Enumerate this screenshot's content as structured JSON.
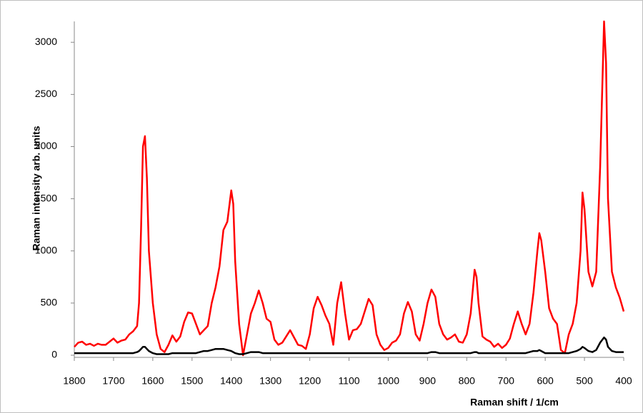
{
  "chart_data": {
    "type": "line",
    "xlabel": "Raman shift / 1/cm",
    "ylabel": "Raman intensity  arb. units",
    "x": [
      1800,
      1790,
      1780,
      1770,
      1760,
      1750,
      1740,
      1730,
      1720,
      1710,
      1700,
      1690,
      1680,
      1670,
      1660,
      1650,
      1640,
      1635,
      1630,
      1625,
      1620,
      1615,
      1610,
      1600,
      1590,
      1580,
      1570,
      1560,
      1550,
      1540,
      1530,
      1520,
      1510,
      1500,
      1490,
      1480,
      1470,
      1460,
      1450,
      1440,
      1430,
      1420,
      1410,
      1400,
      1395,
      1390,
      1380,
      1370,
      1360,
      1350,
      1340,
      1330,
      1320,
      1310,
      1300,
      1290,
      1280,
      1270,
      1260,
      1250,
      1240,
      1230,
      1220,
      1210,
      1200,
      1190,
      1180,
      1170,
      1160,
      1150,
      1140,
      1130,
      1120,
      1110,
      1100,
      1090,
      1080,
      1070,
      1060,
      1050,
      1040,
      1030,
      1020,
      1010,
      1000,
      990,
      980,
      970,
      960,
      950,
      940,
      930,
      920,
      910,
      900,
      890,
      880,
      870,
      860,
      850,
      840,
      830,
      820,
      810,
      800,
      790,
      780,
      775,
      770,
      760,
      750,
      740,
      730,
      720,
      710,
      700,
      690,
      680,
      670,
      660,
      650,
      640,
      630,
      620,
      615,
      610,
      600,
      590,
      580,
      570,
      560,
      550,
      540,
      530,
      520,
      510,
      505,
      500,
      490,
      480,
      470,
      460,
      450,
      445,
      440,
      430,
      420,
      410,
      400
    ],
    "series": [
      {
        "color": "#ff0000",
        "values": [
          80,
          120,
          130,
          100,
          110,
          90,
          110,
          100,
          100,
          130,
          160,
          120,
          140,
          150,
          200,
          230,
          280,
          500,
          1200,
          2000,
          2100,
          1700,
          1000,
          500,
          200,
          60,
          30,
          100,
          190,
          130,
          180,
          320,
          410,
          400,
          300,
          200,
          240,
          280,
          500,
          650,
          850,
          1200,
          1280,
          1580,
          1450,
          900,
          300,
          0,
          200,
          400,
          500,
          620,
          500,
          350,
          320,
          150,
          100,
          120,
          180,
          240,
          170,
          100,
          90,
          60,
          200,
          450,
          560,
          480,
          380,
          300,
          100,
          500,
          700,
          400,
          150,
          240,
          250,
          300,
          420,
          540,
          480,
          200,
          100,
          50,
          70,
          120,
          140,
          200,
          400,
          510,
          420,
          200,
          140,
          300,
          500,
          630,
          560,
          300,
          200,
          150,
          170,
          200,
          130,
          120,
          200,
          400,
          820,
          750,
          500,
          180,
          150,
          130,
          80,
          110,
          70,
          100,
          160,
          300,
          420,
          300,
          200,
          300,
          600,
          1000,
          1170,
          1100,
          800,
          450,
          350,
          300,
          50,
          20,
          200,
          300,
          500,
          1000,
          1560,
          1400,
          800,
          660,
          800,
          1800,
          3200,
          2800,
          1500,
          800,
          650,
          550,
          420
        ]
      },
      {
        "color": "#000000",
        "values": [
          20,
          20,
          20,
          20,
          20,
          20,
          20,
          20,
          20,
          20,
          20,
          20,
          20,
          20,
          20,
          20,
          30,
          40,
          60,
          80,
          80,
          60,
          40,
          20,
          10,
          10,
          10,
          10,
          20,
          20,
          20,
          20,
          20,
          20,
          20,
          30,
          40,
          40,
          50,
          60,
          60,
          60,
          50,
          40,
          30,
          20,
          10,
          10,
          20,
          30,
          30,
          30,
          20,
          20,
          20,
          20,
          20,
          20,
          20,
          20,
          20,
          20,
          20,
          20,
          20,
          20,
          20,
          20,
          20,
          20,
          20,
          20,
          20,
          20,
          20,
          20,
          20,
          20,
          20,
          20,
          20,
          20,
          20,
          20,
          20,
          20,
          20,
          20,
          20,
          20,
          20,
          20,
          20,
          20,
          20,
          30,
          30,
          20,
          20,
          20,
          20,
          20,
          20,
          20,
          20,
          20,
          30,
          30,
          20,
          20,
          20,
          20,
          20,
          20,
          20,
          20,
          20,
          20,
          20,
          20,
          20,
          30,
          40,
          40,
          50,
          40,
          20,
          20,
          20,
          20,
          20,
          20,
          20,
          30,
          40,
          60,
          80,
          70,
          40,
          30,
          50,
          120,
          170,
          150,
          80,
          40,
          30,
          30,
          30
        ]
      }
    ],
    "xlim": [
      1800,
      400
    ],
    "xticks": [
      1800,
      1700,
      1600,
      1500,
      1400,
      1300,
      1200,
      1100,
      1000,
      900,
      800,
      700,
      600,
      500,
      400
    ],
    "ylim": [
      0,
      3200
    ],
    "yticks": [
      0,
      500,
      1000,
      1500,
      2000,
      2500,
      3000
    ]
  }
}
